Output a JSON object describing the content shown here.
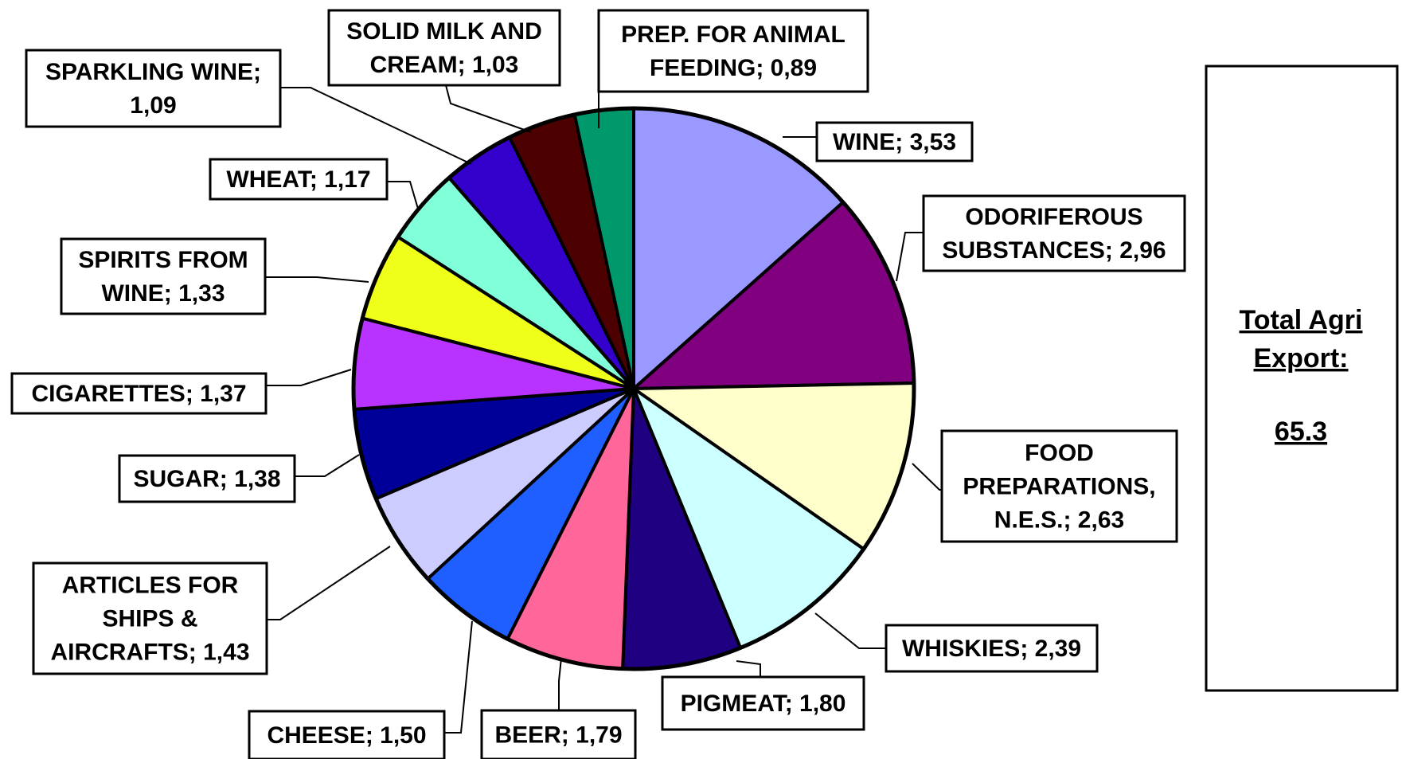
{
  "chart_data": {
    "type": "pie",
    "slices": [
      {
        "label": "WINE; 3,53",
        "category": "WINE",
        "value": 3.53,
        "color": "#9999ff"
      },
      {
        "label": "ODORIFEROUS SUBSTANCES; 2,96",
        "category": "ODORIFEROUS SUBSTANCES",
        "value": 2.96,
        "color": "#800080"
      },
      {
        "label": "FOOD PREPARATIONS, N.E.S.; 2,63",
        "category": "FOOD PREPARATIONS, N.E.S.",
        "value": 2.63,
        "color": "#ffffcc"
      },
      {
        "label": "WHISKIES; 2,39",
        "category": "WHISKIES",
        "value": 2.39,
        "color": "#ccffff"
      },
      {
        "label": "PIGMEAT; 1,80",
        "category": "PIGMEAT",
        "value": 1.8,
        "color": "#1f0080"
      },
      {
        "label": "BEER; 1,79",
        "category": "BEER",
        "value": 1.79,
        "color": "#ff6699"
      },
      {
        "label": "CHEESE; 1,50",
        "category": "CHEESE",
        "value": 1.5,
        "color": "#1f5fff"
      },
      {
        "label": "ARTICLES FOR SHIPS & AIRCRAFTS; 1,43",
        "category": "ARTICLES FOR SHIPS & AIRCRAFTS",
        "value": 1.43,
        "color": "#ccccff"
      },
      {
        "label": "SUGAR; 1,38",
        "category": "SUGAR",
        "value": 1.38,
        "color": "#000099"
      },
      {
        "label": "CIGARETTES; 1,37",
        "category": "CIGARETTES",
        "value": 1.37,
        "color": "#b833ff"
      },
      {
        "label": "SPIRITS FROM WINE; 1,33",
        "category": "SPIRITS FROM WINE",
        "value": 1.33,
        "color": "#f0ff1a"
      },
      {
        "label": "WHEAT; 1,17",
        "category": "WHEAT",
        "value": 1.17,
        "color": "#80ffd9"
      },
      {
        "label": "SPARKLING WINE; 1,09",
        "category": "SPARKLING WINE",
        "value": 1.09,
        "color": "#3300cc"
      },
      {
        "label": "SOLID MILK AND CREAM; 1,03",
        "category": "SOLID MILK AND CREAM",
        "value": 1.03,
        "color": "#4d0000"
      },
      {
        "label": "PREP. FOR ANIMAL FEEDING; 0,89",
        "category": "PREP. FOR ANIMAL FEEDING",
        "value": 0.89,
        "color": "#00996b"
      }
    ],
    "total": {
      "line1": "Total Agri",
      "line2": "Export:",
      "value": "65.3"
    }
  },
  "labels": [
    {
      "lines": [
        "WINE; 3,53"
      ]
    },
    {
      "lines": [
        "ODORIFEROUS",
        "SUBSTANCES; 2,96"
      ]
    },
    {
      "lines": [
        "FOOD",
        "PREPARATIONS,",
        "N.E.S.; 2,63"
      ]
    },
    {
      "lines": [
        "WHISKIES; 2,39"
      ]
    },
    {
      "lines": [
        "PIGMEAT; 1,80"
      ]
    },
    {
      "lines": [
        "BEER; 1,79"
      ]
    },
    {
      "lines": [
        "CHEESE; 1,50"
      ]
    },
    {
      "lines": [
        "ARTICLES FOR",
        "SHIPS &",
        "AIRCRAFTS; 1,43"
      ]
    },
    {
      "lines": [
        "SUGAR; 1,38"
      ]
    },
    {
      "lines": [
        "CIGARETTES; 1,37"
      ]
    },
    {
      "lines": [
        "SPIRITS FROM",
        "WINE; 1,33"
      ]
    },
    {
      "lines": [
        "WHEAT; 1,17"
      ]
    },
    {
      "lines": [
        "SPARKLING WINE;",
        "1,09"
      ]
    },
    {
      "lines": [
        "SOLID MILK AND",
        "CREAM; 1,03"
      ]
    },
    {
      "lines": [
        "PREP. FOR ANIMAL",
        "FEEDING; 0,89"
      ]
    }
  ]
}
